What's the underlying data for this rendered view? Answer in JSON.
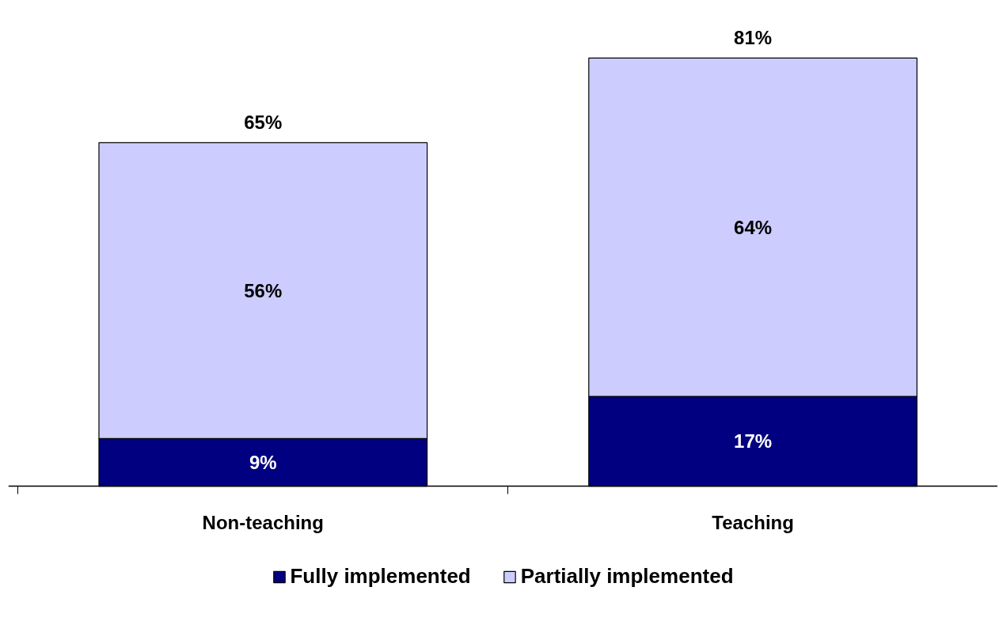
{
  "chart_data": {
    "type": "bar",
    "stacked": true,
    "categories": [
      "Non-teaching",
      "Teaching"
    ],
    "series": [
      {
        "name": "Fully implemented",
        "color": "#000080",
        "values": [
          9,
          17
        ],
        "value_labels": [
          "9%",
          "17%"
        ]
      },
      {
        "name": "Partially implemented",
        "color": "#ccccff",
        "values": [
          56,
          64
        ],
        "value_labels": [
          "56%",
          "64%"
        ]
      }
    ],
    "totals": [
      "65%",
      "81%"
    ],
    "legend": "bottom",
    "grid": false
  }
}
